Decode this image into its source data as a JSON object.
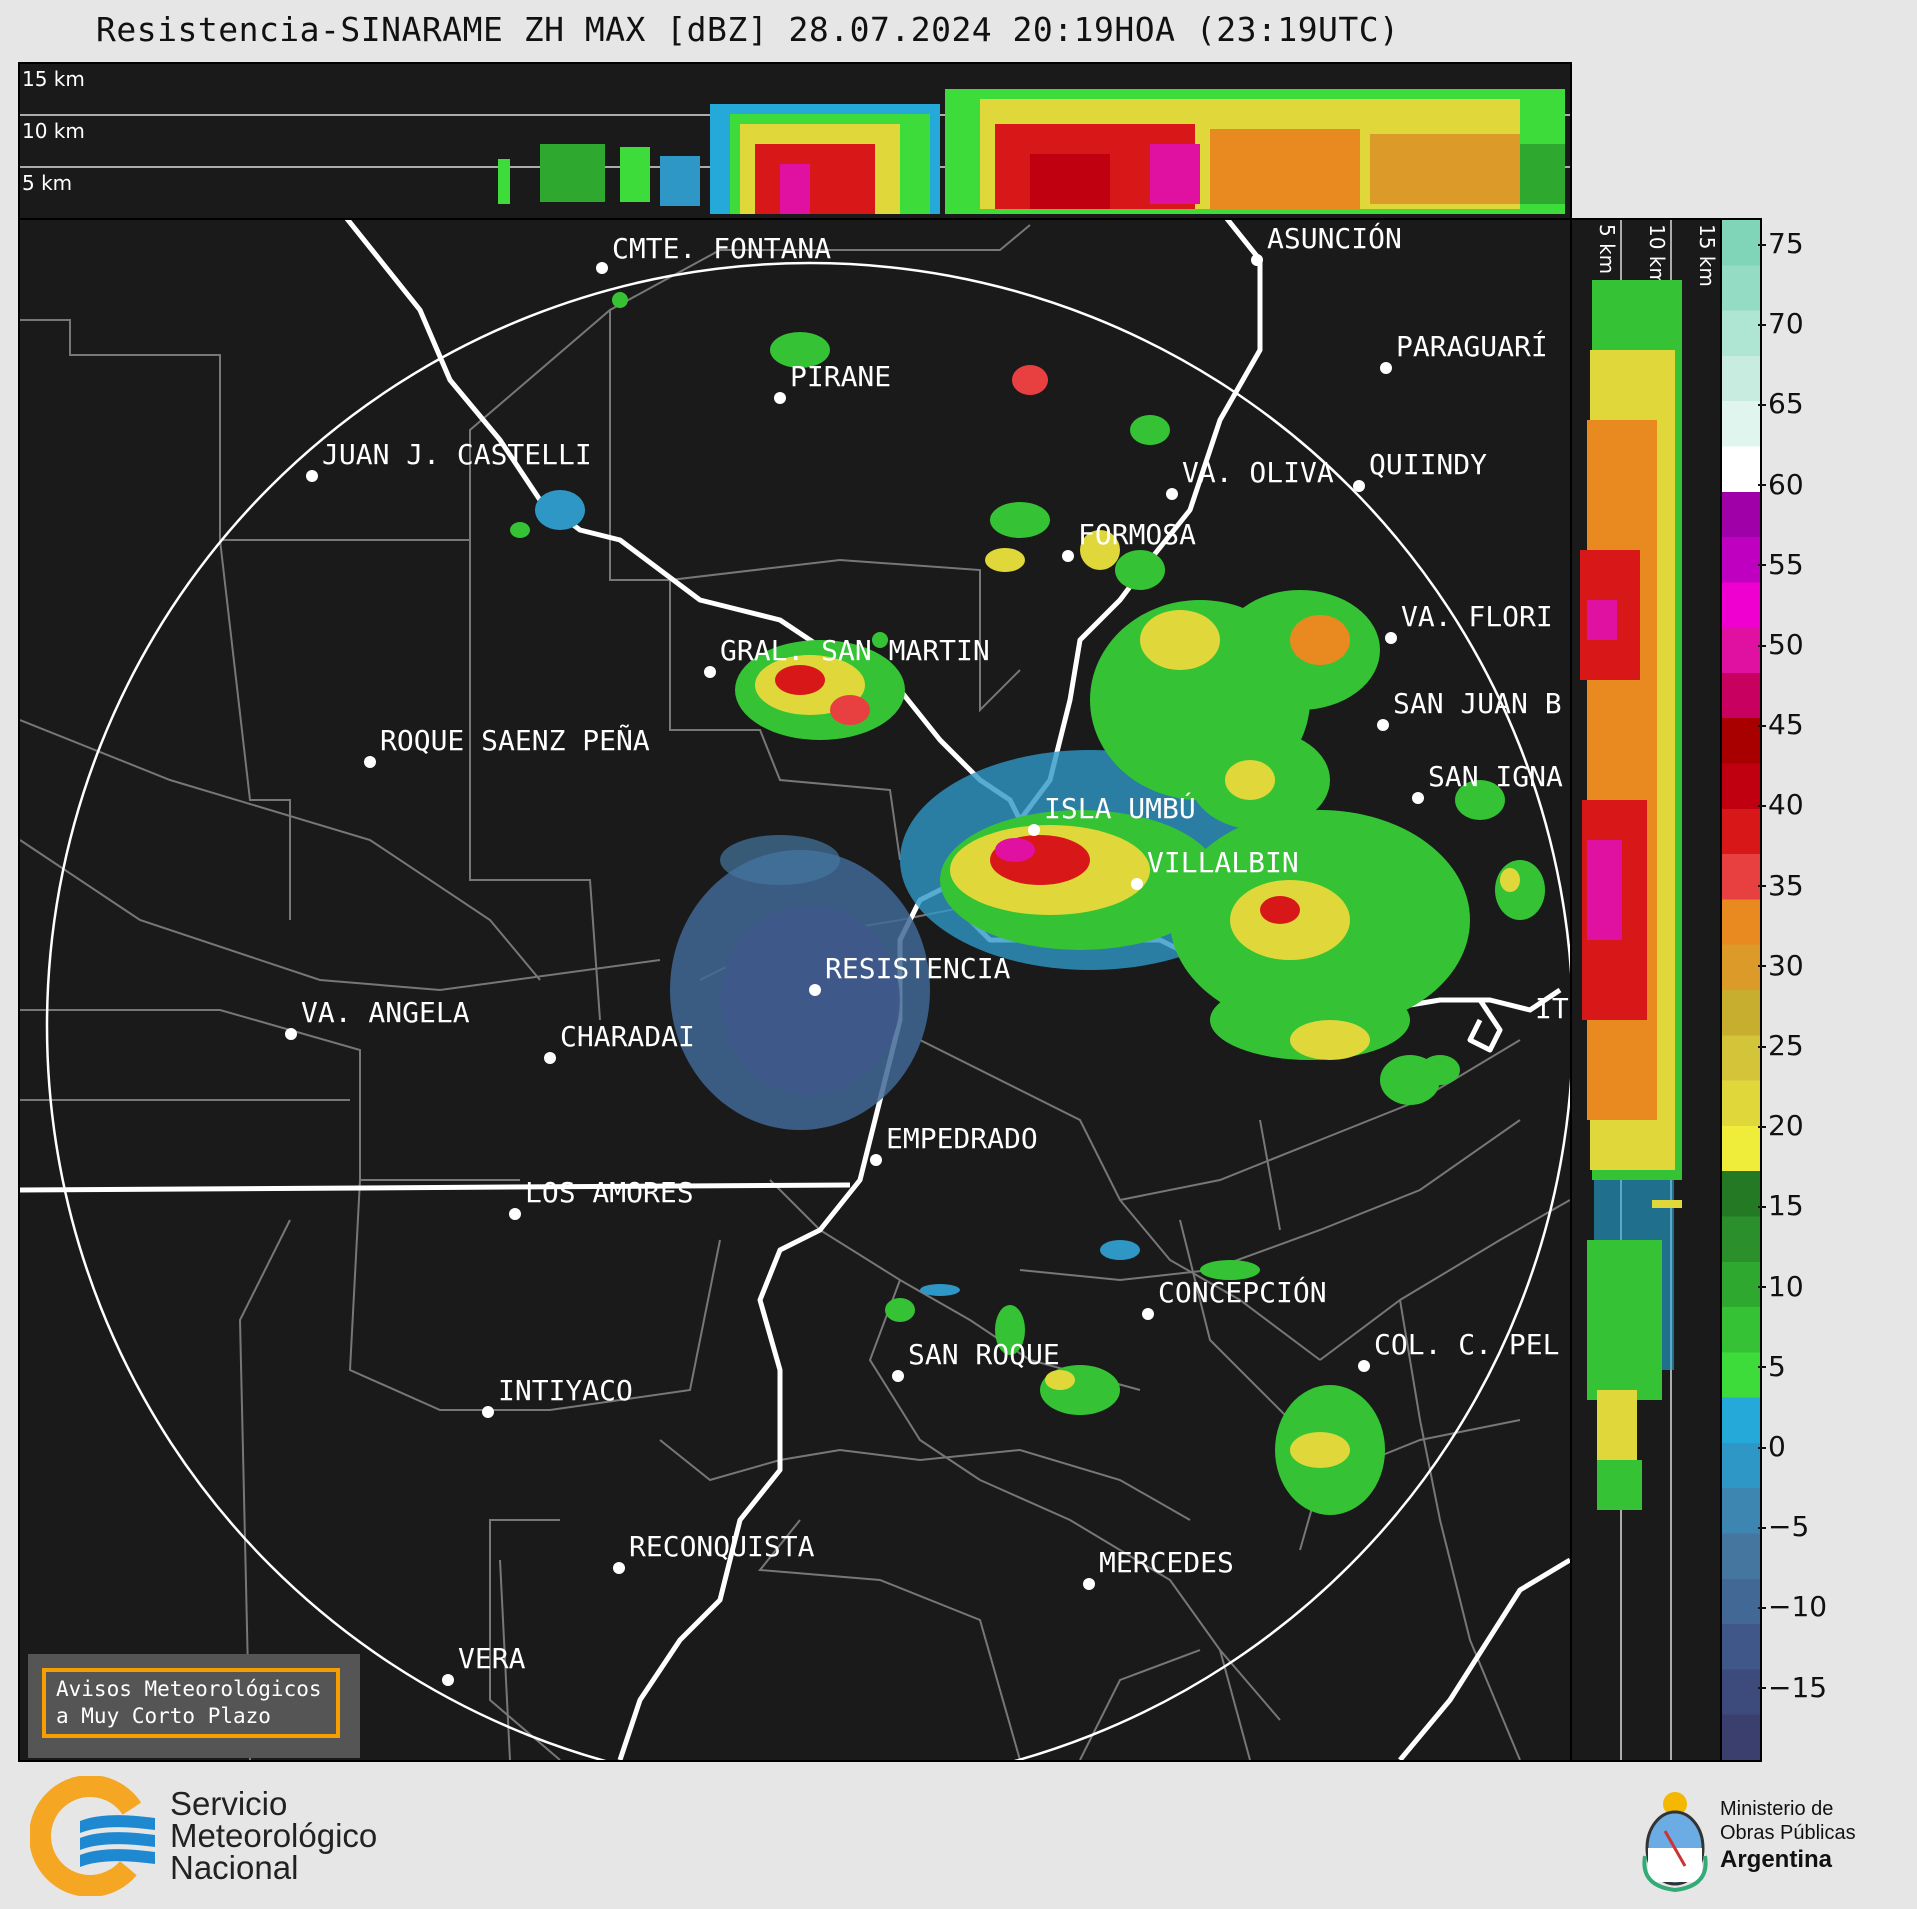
{
  "title": "Resistencia-SINARAME ZH MAX [dBZ] 28.07.2024 20:19HOA (23:19UTC)",
  "top_panel": {
    "height_labels": [
      "15 km",
      "10 km",
      "5 km"
    ]
  },
  "side_panel": {
    "height_labels": [
      "5 km",
      "10 km",
      "15 km"
    ]
  },
  "cities": [
    {
      "name": "CMTE. FONTANA"
    },
    {
      "name": "ASUNCIÓN"
    },
    {
      "name": "PARAGUARÍ"
    },
    {
      "name": "PIRANE"
    },
    {
      "name": "JUAN J. CASTELLI"
    },
    {
      "name": "VA. OLIVA"
    },
    {
      "name": "QUIINDY"
    },
    {
      "name": "FORMOSA"
    },
    {
      "name": "VA. FLORI"
    },
    {
      "name": "GRAL. SAN MARTIN"
    },
    {
      "name": "SAN JUAN B"
    },
    {
      "name": "ROQUE SAENZ PEÑA"
    },
    {
      "name": "SAN IGNA"
    },
    {
      "name": "ISLA UMBÚ"
    },
    {
      "name": "VILLALBIN"
    },
    {
      "name": "RESISTENCIA"
    },
    {
      "name": "VA. ANGELA"
    },
    {
      "name": "CHARADAI"
    },
    {
      "name": "IT"
    },
    {
      "name": "EMPEDRADO"
    },
    {
      "name": "LOS AMORES"
    },
    {
      "name": "CONCEPCIÓN"
    },
    {
      "name": "SAN ROQUE"
    },
    {
      "name": "COL. C. PEL"
    },
    {
      "name": "INTIYACO"
    },
    {
      "name": "RECONQUISTA"
    },
    {
      "name": "MERCEDES"
    },
    {
      "name": "VERA"
    }
  ],
  "colorbar": {
    "unit": "dBZ",
    "ticks": [
      "75",
      "70",
      "65",
      "60",
      "55",
      "50",
      "45",
      "40",
      "35",
      "30",
      "25",
      "20",
      "15",
      "10",
      "5",
      "0",
      "−5",
      "−10",
      "−15"
    ],
    "colors": [
      "#3a3f6e",
      "#3d4a7c",
      "#3f5889",
      "#426895",
      "#4576a0",
      "#3d86b2",
      "#2f97c5",
      "#25a9d8",
      "#3ddc3a",
      "#35c335",
      "#2fa82f",
      "#2b8f2b",
      "#247a24",
      "#f0ec3a",
      "#e0d83a",
      "#d4c43a",
      "#c8ae2e",
      "#dc9a28",
      "#e88a20",
      "#e84040",
      "#d81818",
      "#c00010",
      "#a80000",
      "#c80060",
      "#e010a0",
      "#f000d0",
      "#c000c0",
      "#a000a8",
      "#ffffff",
      "#e0f5ee",
      "#c8ede0",
      "#aee6d3",
      "#94dcc4",
      "#80d4b8"
    ]
  },
  "warning": {
    "line1": "Avisos Meteorológicos",
    "line2": "a Muy Corto Plazo"
  },
  "smn": {
    "line1": "Servicio",
    "line2": "Meteorológico",
    "line3": "Nacional",
    "accent_orange": "#f5a623",
    "accent_blue": "#1e88d0"
  },
  "ministry": {
    "line1": "Ministerio de",
    "line2": "Obras Públicas",
    "line3": "Argentina"
  }
}
